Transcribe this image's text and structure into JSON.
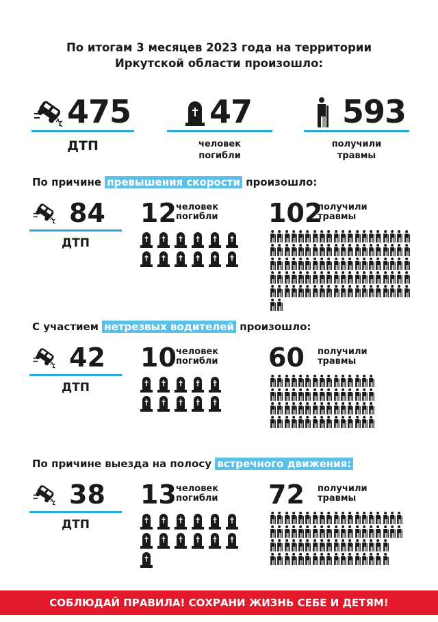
{
  "title": [
    "По итогам 3 месяцев 2023 года на территории",
    "Иркутской области произошло:"
  ],
  "totals": [
    {
      "icon": "car-crash-icon",
      "value": "475",
      "label": [
        "ДТП"
      ]
    },
    {
      "icon": "tombstone-icon",
      "value": "47",
      "label": [
        "человек",
        "погибли"
      ]
    },
    {
      "icon": "injured-person-icon",
      "value": "593",
      "label": [
        "получили",
        "травмы"
      ]
    }
  ],
  "sections": [
    {
      "pre": "По причине",
      "highlight": "превышения скорости",
      "post": "произошло:",
      "dtp": "84",
      "dtp_label": "ДТП",
      "deaths": "12",
      "deaths_label": [
        "человек",
        "погибли"
      ],
      "injured": "102",
      "injured_label": [
        "получили",
        "травмы"
      ],
      "deaths_count": 12,
      "injured_count": 102
    },
    {
      "pre": "С участием",
      "highlight": "нетрезвых водителей",
      "post": "произошло:",
      "dtp": "42",
      "dtp_label": "ДТП",
      "deaths": "10",
      "deaths_label": [
        "человек",
        "погибли"
      ],
      "injured": "60",
      "injured_label": [
        "получили",
        "травмы"
      ],
      "deaths_count": 10,
      "injured_count": 60
    },
    {
      "pre": "По причине выезда на полосу",
      "highlight": "встречного движения:",
      "post": "",
      "dtp": "38",
      "dtp_label": "ДТП",
      "deaths": "13",
      "deaths_label": [
        "человек",
        "погибли"
      ],
      "injured": "72",
      "injured_label": [
        "получили",
        "травмы"
      ],
      "deaths_count": 13,
      "injured_count": 72
    }
  ],
  "banner": "СОБЛЮДАЙ ПРАВИЛА! СОХРАНИ ЖИЗНЬ СЕБЕ И ДЕТЯМ!",
  "colors": {
    "accent": "#29a8e0",
    "highlight": "#5bc0e8",
    "banner": "#e3192b"
  }
}
